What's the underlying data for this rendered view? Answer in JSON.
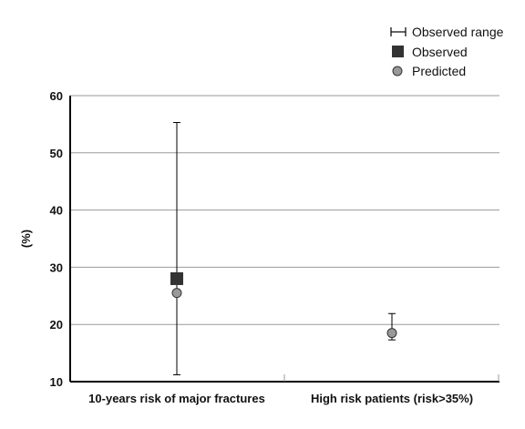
{
  "chart_data": {
    "type": "scatter",
    "ylabel": "(%)",
    "ylim": [
      10,
      60
    ],
    "yticks": [
      10,
      20,
      30,
      40,
      50,
      60
    ],
    "grid": true,
    "legend_placement": "top-right",
    "categories": [
      "10-years risk of major fractures",
      "High risk patients (risk>35%)"
    ],
    "legend": {
      "range": "Observed range",
      "observed": "Observed",
      "predicted": "Predicted"
    },
    "series": [
      {
        "name": "Observed",
        "values": [
          28,
          null
        ]
      },
      {
        "name": "Predicted",
        "values": [
          25.5,
          18.5
        ]
      }
    ],
    "observed_range": [
      {
        "category": "10-years risk of major fractures",
        "low": 11.2,
        "high": 55.3
      },
      {
        "category": "High risk patients (risk>35%)",
        "low": 17.3,
        "high": 21.9
      }
    ],
    "colors": {
      "observed": "#333333",
      "predicted": "#999999",
      "grid": "#9a9a9a",
      "axis": "#000000"
    }
  }
}
